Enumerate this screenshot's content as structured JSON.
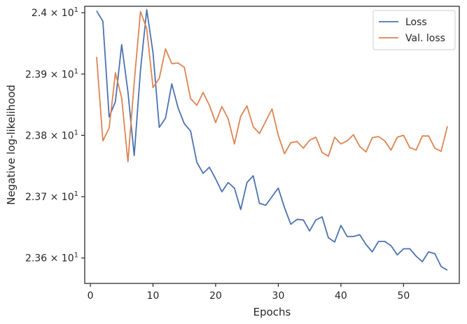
{
  "chart_data": {
    "type": "line",
    "xlabel": "Epochs",
    "ylabel": "Negative log-likelihood",
    "xlim": [
      -0.9,
      58.9
    ],
    "ylim": [
      23.5585,
      24.0105
    ],
    "x_ticks": [
      0,
      10,
      20,
      30,
      40,
      50
    ],
    "y_ticks": [
      {
        "value": 23.6,
        "mantissa": "2.36",
        "exp": "1"
      },
      {
        "value": 23.7,
        "mantissa": "2.37",
        "exp": "1"
      },
      {
        "value": 23.8,
        "mantissa": "2.38",
        "exp": "1"
      },
      {
        "value": 23.9,
        "mantissa": "2.39",
        "exp": "1"
      },
      {
        "value": 24.0,
        "mantissa": "2.4",
        "exp": "1"
      }
    ],
    "y_tick_times": "×",
    "y_tick_base": "10",
    "grid": false,
    "legend_position": "top-right",
    "x": [
      1,
      2,
      3,
      4,
      5,
      6,
      7,
      8,
      9,
      10,
      11,
      12,
      13,
      14,
      15,
      16,
      17,
      18,
      19,
      20,
      21,
      22,
      23,
      24,
      25,
      26,
      27,
      28,
      29,
      30,
      31,
      32,
      33,
      34,
      35,
      36,
      37,
      38,
      39,
      40,
      41,
      42,
      43,
      44,
      45,
      46,
      47,
      48,
      49,
      50,
      51,
      52,
      53,
      54,
      55,
      56,
      57
    ],
    "series": [
      {
        "name": "Loss",
        "color": "#4c72b0",
        "values": [
          24.003,
          23.986,
          23.83,
          23.855,
          23.948,
          23.871,
          23.767,
          23.906,
          24.005,
          23.935,
          23.813,
          23.828,
          23.884,
          23.845,
          23.819,
          23.807,
          23.756,
          23.738,
          23.748,
          23.729,
          23.708,
          23.723,
          23.714,
          23.679,
          23.723,
          23.734,
          23.689,
          23.686,
          23.7,
          23.714,
          23.682,
          23.655,
          23.663,
          23.662,
          23.644,
          23.662,
          23.667,
          23.633,
          23.626,
          23.653,
          23.635,
          23.635,
          23.638,
          23.622,
          23.61,
          23.627,
          23.627,
          23.62,
          23.605,
          23.615,
          23.615,
          23.603,
          23.594,
          23.61,
          23.607,
          23.586,
          23.58
        ]
      },
      {
        "name": "Val. loss",
        "color": "#dd8452",
        "values": [
          23.928,
          23.791,
          23.812,
          23.902,
          23.861,
          23.757,
          23.886,
          24.002,
          23.974,
          23.878,
          23.893,
          23.941,
          23.917,
          23.918,
          23.911,
          23.86,
          23.849,
          23.87,
          23.849,
          23.821,
          23.847,
          23.827,
          23.786,
          23.831,
          23.848,
          23.814,
          23.803,
          23.823,
          23.843,
          23.8,
          23.77,
          23.788,
          23.79,
          23.779,
          23.792,
          23.797,
          23.772,
          23.766,
          23.797,
          23.786,
          23.791,
          23.801,
          23.782,
          23.773,
          23.796,
          23.798,
          23.791,
          23.776,
          23.797,
          23.8,
          23.78,
          23.776,
          23.799,
          23.799,
          23.779,
          23.774,
          23.815
        ]
      }
    ]
  }
}
